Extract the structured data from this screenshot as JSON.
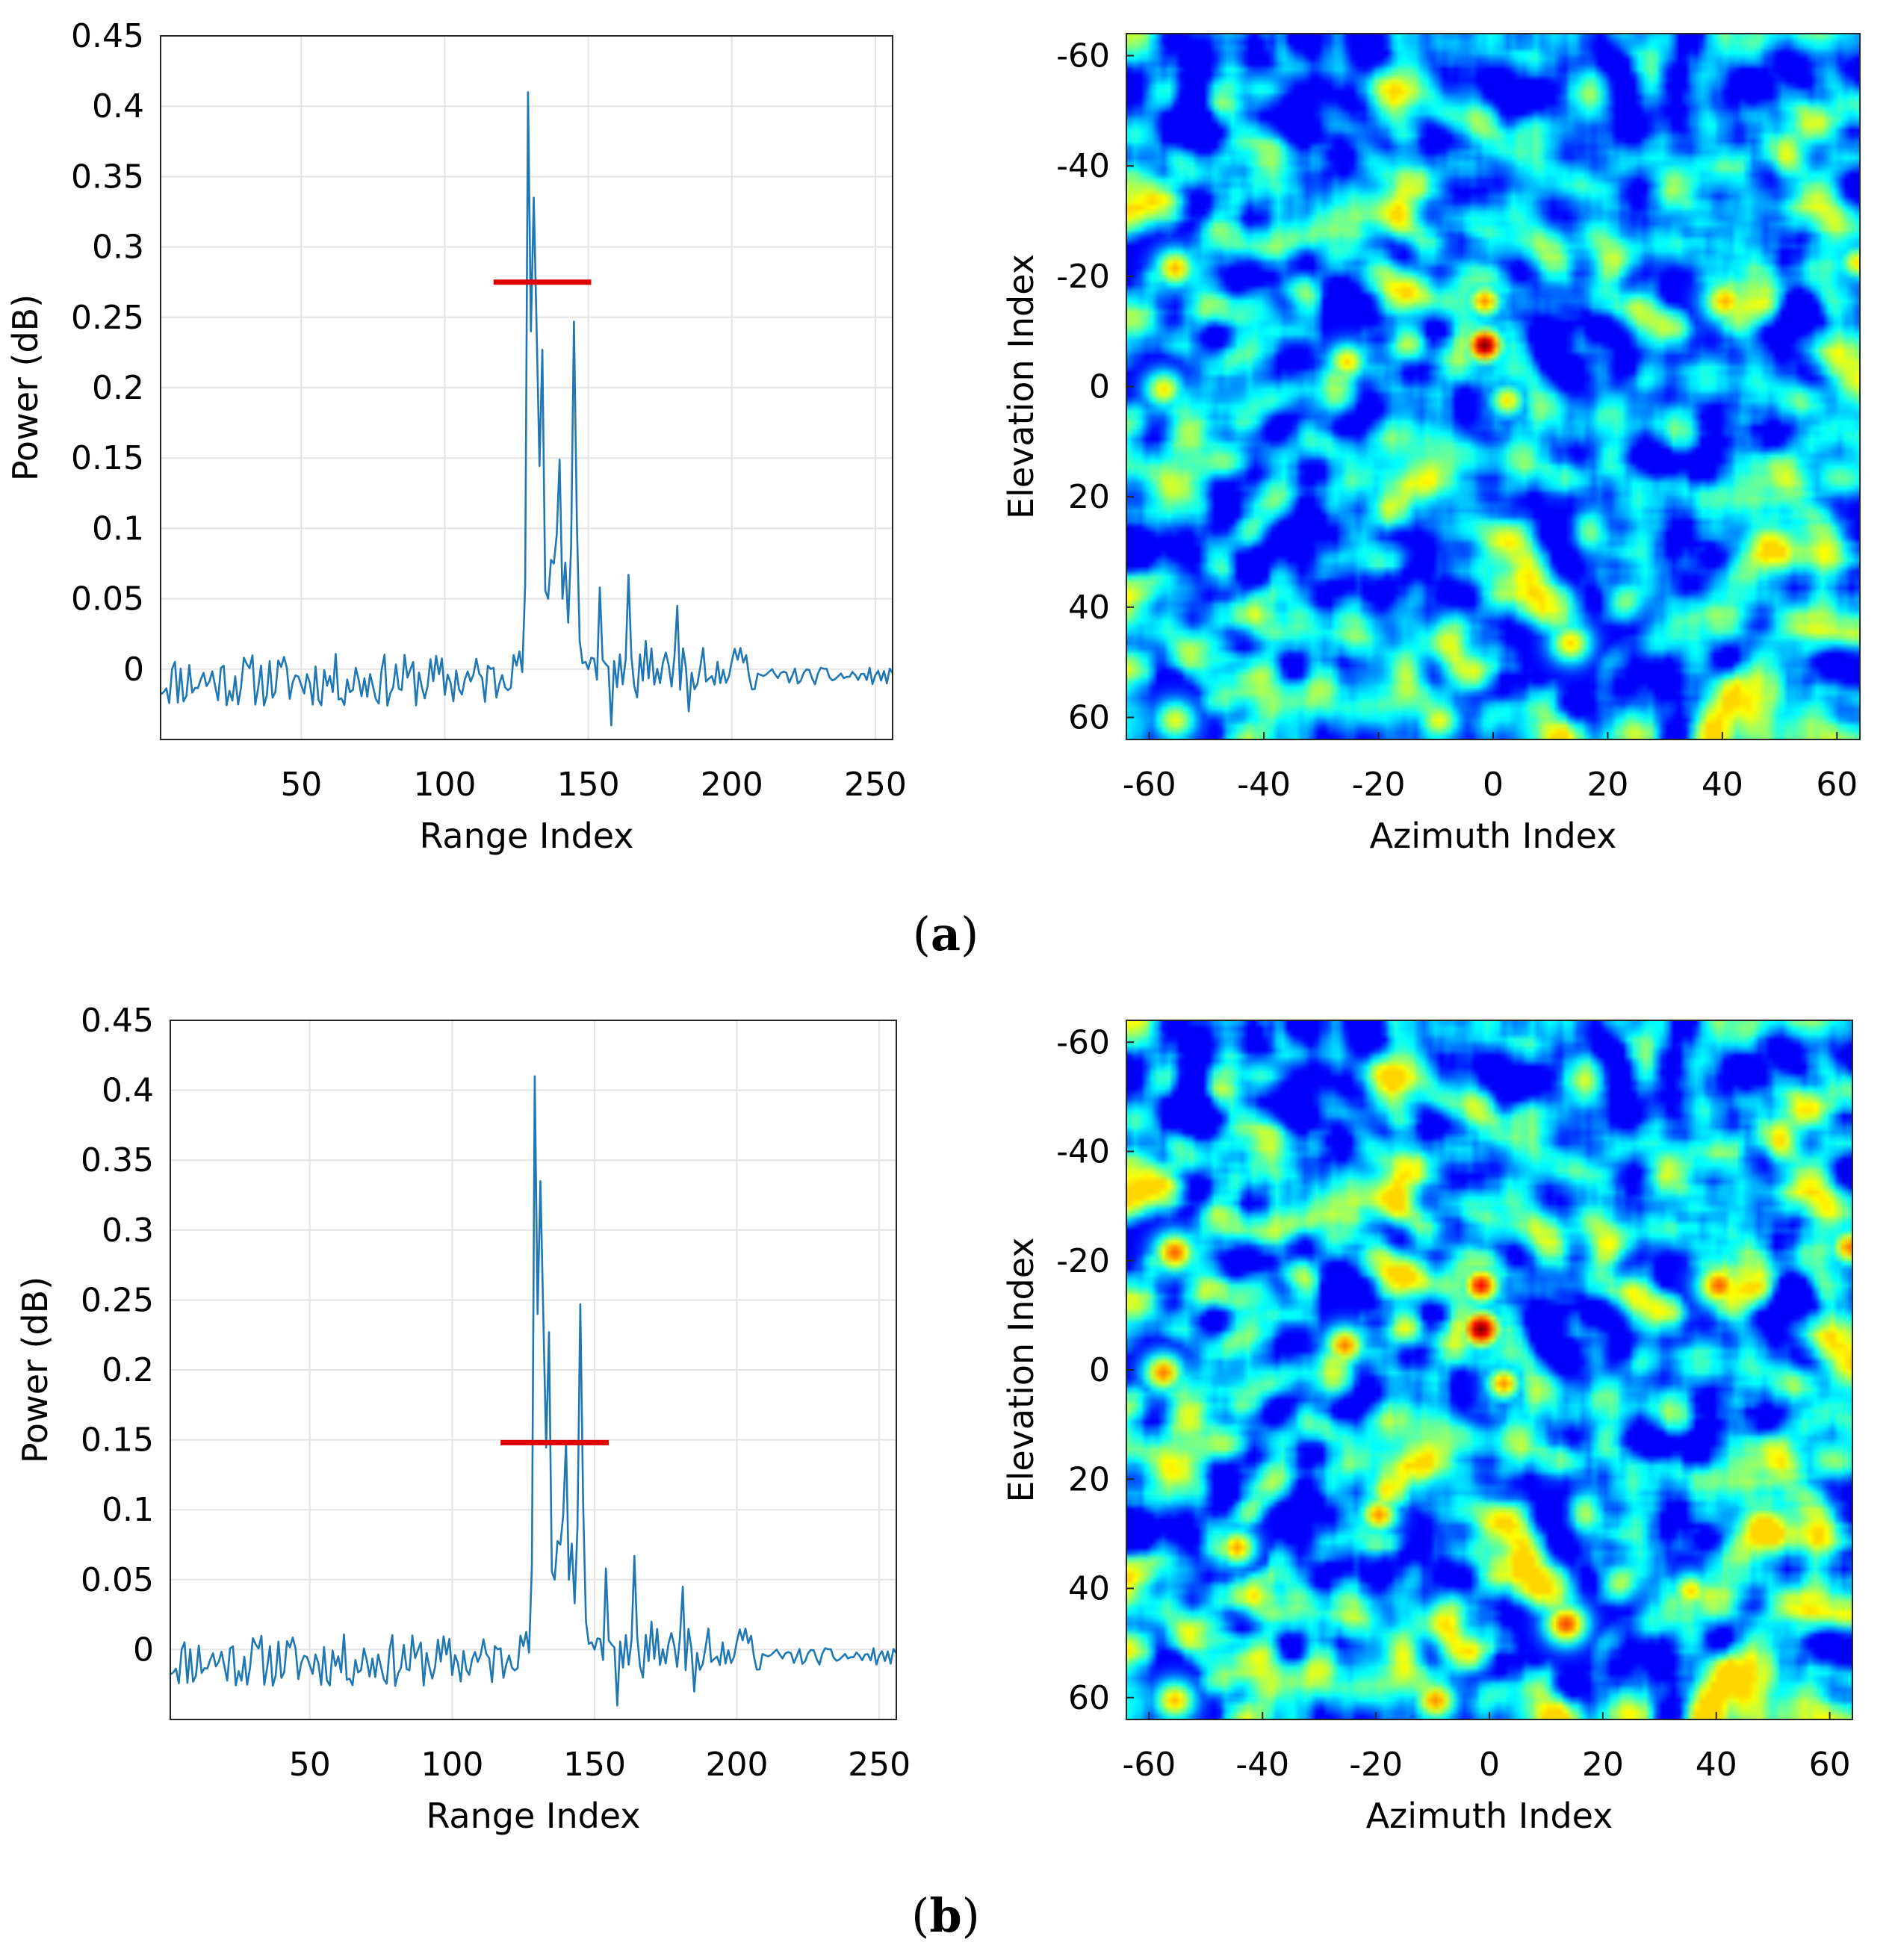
{
  "figure": {
    "panels": [
      {
        "open": "(",
        "letter": "a",
        "close": ")"
      },
      {
        "open": "(",
        "letter": "b",
        "close": ")"
      }
    ]
  },
  "chart_data": [
    {
      "type": "line",
      "panel": "a",
      "title": "",
      "xlabel": "Range Index",
      "ylabel": "Power (dB)",
      "xlim": [
        1,
        256
      ],
      "ylim": [
        -0.05,
        0.45
      ],
      "xticks": [
        50,
        100,
        150,
        200,
        250
      ],
      "yticks": [
        0,
        0.05,
        0.1,
        0.15,
        0.2,
        0.25,
        0.3,
        0.35,
        0.4,
        0.45
      ],
      "grid": true,
      "series_color": "#1f77b4",
      "threshold": {
        "value": 0.275,
        "x_start": 117,
        "x_end": 151,
        "color": "#e00000"
      },
      "peaks": [
        {
          "x": 124,
          "y": 0.01
        },
        {
          "x": 128,
          "y": 0.06
        },
        {
          "x": 129,
          "y": 0.41
        },
        {
          "x": 130,
          "y": 0.24
        },
        {
          "x": 131,
          "y": 0.335
        },
        {
          "x": 132,
          "y": 0.24
        },
        {
          "x": 134,
          "y": 0.227
        },
        {
          "x": 136,
          "y": 0.05
        },
        {
          "x": 138,
          "y": 0.075
        },
        {
          "x": 141,
          "y": 0.05
        },
        {
          "x": 143,
          "y": 0.033
        },
        {
          "x": 145,
          "y": 0.247
        },
        {
          "x": 147,
          "y": 0.02
        },
        {
          "x": 150,
          "y": 0.0
        },
        {
          "x": 154,
          "y": 0.058
        },
        {
          "x": 158,
          "y": -0.04
        },
        {
          "x": 164,
          "y": 0.067
        },
        {
          "x": 167,
          "y": -0.02
        },
        {
          "x": 170,
          "y": 0.02
        },
        {
          "x": 175,
          "y": -0.01
        },
        {
          "x": 181,
          "y": 0.045
        },
        {
          "x": 185,
          "y": -0.03
        },
        {
          "x": 190,
          "y": 0.015
        },
        {
          "x": 196,
          "y": -0.01
        },
        {
          "x": 203,
          "y": 0.015
        },
        {
          "x": 206,
          "y": -0.005
        }
      ]
    },
    {
      "type": "heatmap",
      "panel": "a",
      "xlabel": "Azimuth Index",
      "ylabel": "Elevation Index",
      "xlim": [
        -64,
        64
      ],
      "ylim": [
        -64,
        64
      ],
      "y_reversed": true,
      "xticks": [
        -60,
        -40,
        -20,
        0,
        20,
        40,
        60
      ],
      "yticks": [
        -60,
        -40,
        -20,
        0,
        20,
        40,
        60
      ],
      "colormap": "jet",
      "seed": 7,
      "hotspots": [
        {
          "x": -2,
          "y": -8,
          "v": 1.0,
          "s": 2.3
        },
        {
          "x": -2,
          "y": -16,
          "v": 0.7,
          "s": 2.2
        },
        {
          "x": 2,
          "y": 2,
          "v": 0.6,
          "s": 2.2
        },
        {
          "x": -56,
          "y": -22,
          "v": 0.66,
          "s": 2.5
        },
        {
          "x": 40,
          "y": -16,
          "v": 0.66,
          "s": 2.8
        },
        {
          "x": 63,
          "y": -23,
          "v": 0.6,
          "s": 2.2
        },
        {
          "x": -26,
          "y": -5,
          "v": 0.62,
          "s": 2.4
        },
        {
          "x": -58,
          "y": 0,
          "v": 0.6,
          "s": 2.4
        },
        {
          "x": 13,
          "y": 46,
          "v": 0.62,
          "s": 2.6
        },
        {
          "x": -56,
          "y": 60,
          "v": 0.55,
          "s": 2.6
        },
        {
          "x": -10,
          "y": 60,
          "v": 0.56,
          "s": 2.6
        }
      ]
    },
    {
      "type": "line",
      "panel": "b",
      "title": "",
      "xlabel": "Range Index",
      "ylabel": "Power (dB)",
      "xlim": [
        1,
        256
      ],
      "ylim": [
        -0.05,
        0.45
      ],
      "xticks": [
        50,
        100,
        150,
        200,
        250
      ],
      "yticks": [
        0,
        0.05,
        0.1,
        0.15,
        0.2,
        0.25,
        0.3,
        0.35,
        0.4,
        0.45
      ],
      "grid": true,
      "series_color": "#1f77b4",
      "threshold": {
        "value": 0.148,
        "x_start": 117,
        "x_end": 155,
        "color": "#e00000"
      },
      "peaks": [
        {
          "x": 124,
          "y": 0.01
        },
        {
          "x": 128,
          "y": 0.06
        },
        {
          "x": 129,
          "y": 0.41
        },
        {
          "x": 130,
          "y": 0.24
        },
        {
          "x": 131,
          "y": 0.335
        },
        {
          "x": 132,
          "y": 0.24
        },
        {
          "x": 134,
          "y": 0.227
        },
        {
          "x": 136,
          "y": 0.05
        },
        {
          "x": 138,
          "y": 0.075
        },
        {
          "x": 141,
          "y": 0.05
        },
        {
          "x": 143,
          "y": 0.033
        },
        {
          "x": 145,
          "y": 0.247
        },
        {
          "x": 147,
          "y": 0.02
        },
        {
          "x": 150,
          "y": 0.0
        },
        {
          "x": 154,
          "y": 0.058
        },
        {
          "x": 158,
          "y": -0.04
        },
        {
          "x": 164,
          "y": 0.067
        },
        {
          "x": 167,
          "y": -0.02
        },
        {
          "x": 170,
          "y": 0.02
        },
        {
          "x": 175,
          "y": -0.01
        },
        {
          "x": 181,
          "y": 0.045
        },
        {
          "x": 185,
          "y": -0.03
        },
        {
          "x": 190,
          "y": 0.015
        },
        {
          "x": 196,
          "y": -0.01
        },
        {
          "x": 203,
          "y": 0.015
        },
        {
          "x": 206,
          "y": -0.005
        }
      ]
    },
    {
      "type": "heatmap",
      "panel": "b",
      "xlabel": "Azimuth Index",
      "ylabel": "Elevation Index",
      "xlim": [
        -64,
        64
      ],
      "ylim": [
        -64,
        64
      ],
      "y_reversed": true,
      "xticks": [
        -60,
        -40,
        -20,
        0,
        20,
        40,
        60
      ],
      "yticks": [
        -60,
        -40,
        -20,
        0,
        20,
        40,
        60
      ],
      "colormap": "jet",
      "seed": 7,
      "gain": 1.12,
      "hotspots": [
        {
          "x": -2,
          "y": -8,
          "v": 1.0,
          "s": 2.5
        },
        {
          "x": -2,
          "y": -16,
          "v": 0.85,
          "s": 2.4
        },
        {
          "x": 2,
          "y": 2,
          "v": 0.7,
          "s": 2.2
        },
        {
          "x": -56,
          "y": -22,
          "v": 0.75,
          "s": 2.6
        },
        {
          "x": 40,
          "y": -16,
          "v": 0.75,
          "s": 2.8
        },
        {
          "x": 63,
          "y": -23,
          "v": 0.72,
          "s": 2.4
        },
        {
          "x": -26,
          "y": -5,
          "v": 0.72,
          "s": 2.5
        },
        {
          "x": -58,
          "y": 0,
          "v": 0.72,
          "s": 2.5
        },
        {
          "x": 13,
          "y": 46,
          "v": 0.78,
          "s": 2.7
        },
        {
          "x": -56,
          "y": 60,
          "v": 0.65,
          "s": 2.6
        },
        {
          "x": -10,
          "y": 60,
          "v": 0.7,
          "s": 2.6
        },
        {
          "x": -20,
          "y": 26,
          "v": 0.7,
          "s": 2.4
        },
        {
          "x": -45,
          "y": 32,
          "v": 0.68,
          "s": 2.4
        },
        {
          "x": 35,
          "y": 40,
          "v": 0.62,
          "s": 2.4
        }
      ]
    }
  ]
}
